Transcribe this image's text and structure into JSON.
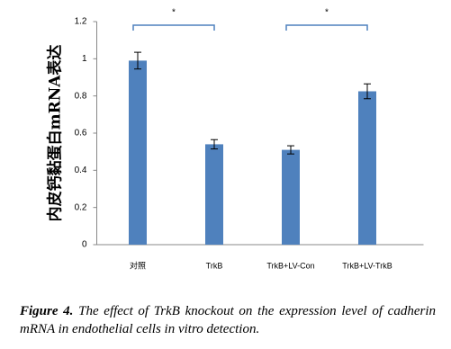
{
  "chart_data": {
    "type": "bar",
    "y_label": "内皮钙黏蛋白mRNA表达",
    "categories": [
      "对照",
      "TrkB",
      "TrkB+LV-Con",
      "TrkB+LV-TrkB"
    ],
    "values": [
      0.99,
      0.54,
      0.51,
      0.825
    ],
    "errors": [
      0.045,
      0.025,
      0.022,
      0.04
    ],
    "color": "#4f81bd",
    "ylim": [
      0,
      1.2
    ],
    "yticks": [
      0,
      0.2,
      0.4,
      0.6,
      0.8,
      1,
      1.2
    ],
    "significance": [
      {
        "label": "*",
        "between": [
          0,
          1
        ]
      },
      {
        "label": "*",
        "between": [
          2,
          3
        ]
      }
    ]
  },
  "caption": {
    "label": "Figure 4.",
    "text": "The effect of TrkB knockout on the expression level of cadherin mRNA in endothelial cells in vitro detection."
  }
}
